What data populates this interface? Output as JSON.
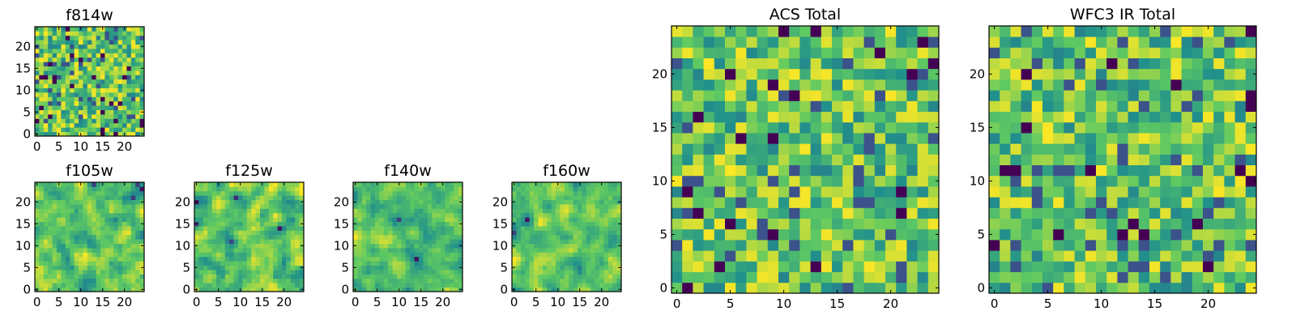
{
  "figure": {
    "description_title": ""
  },
  "chart_data": [
    {
      "type": "heatmap",
      "title": "f814w",
      "xticks": [
        0,
        5,
        10,
        15,
        20
      ],
      "yticks": [
        0,
        5,
        10,
        15,
        20
      ],
      "grid_size": 25,
      "seed": 814,
      "style": "noisy",
      "xlim": [
        -0.5,
        24.5
      ],
      "ylim": [
        -0.5,
        24.5
      ],
      "colormap": "viridis",
      "values": []
    },
    {
      "type": "heatmap",
      "title": "f105w",
      "xticks": [
        0,
        5,
        10,
        15,
        20
      ],
      "yticks": [
        0,
        5,
        10,
        15,
        20
      ],
      "grid_size": 25,
      "seed": 105,
      "style": "smooth",
      "xlim": [
        -0.5,
        24.5
      ],
      "ylim": [
        -0.5,
        24.5
      ],
      "colormap": "viridis",
      "values": []
    },
    {
      "type": "heatmap",
      "title": "f125w",
      "xticks": [
        0,
        5,
        10,
        15,
        20
      ],
      "yticks": [
        0,
        5,
        10,
        15,
        20
      ],
      "grid_size": 25,
      "seed": 125,
      "style": "smooth",
      "xlim": [
        -0.5,
        24.5
      ],
      "ylim": [
        -0.5,
        24.5
      ],
      "colormap": "viridis",
      "values": []
    },
    {
      "type": "heatmap",
      "title": "f140w",
      "xticks": [
        0,
        5,
        10,
        15,
        20
      ],
      "yticks": [
        0,
        5,
        10,
        15,
        20
      ],
      "grid_size": 25,
      "seed": 140,
      "style": "smooth",
      "xlim": [
        -0.5,
        24.5
      ],
      "ylim": [
        -0.5,
        24.5
      ],
      "colormap": "viridis",
      "values": []
    },
    {
      "type": "heatmap",
      "title": "f160w",
      "xticks": [
        0,
        5,
        10,
        15,
        20
      ],
      "yticks": [
        0,
        5,
        10,
        15,
        20
      ],
      "grid_size": 25,
      "seed": 160,
      "style": "smooth",
      "xlim": [
        -0.5,
        24.5
      ],
      "ylim": [
        -0.5,
        24.5
      ],
      "colormap": "viridis",
      "values": []
    },
    {
      "type": "heatmap",
      "title": "ACS Total",
      "xticks": [
        0,
        5,
        10,
        15,
        20
      ],
      "yticks": [
        0,
        5,
        10,
        15,
        20
      ],
      "grid_size": 25,
      "seed": 700,
      "style": "blocky",
      "xlim": [
        -0.5,
        24.5
      ],
      "ylim": [
        -0.5,
        24.5
      ],
      "colormap": "viridis",
      "values": []
    },
    {
      "type": "heatmap",
      "title": "WFC3 IR Total",
      "xticks": [
        0,
        5,
        10,
        15,
        20
      ],
      "yticks": [
        0,
        5,
        10,
        15,
        20
      ],
      "grid_size": 25,
      "seed": 333,
      "style": "blocky",
      "xlim": [
        -0.5,
        24.5
      ],
      "ylim": [
        -0.5,
        24.5
      ],
      "colormap": "viridis",
      "values": []
    }
  ],
  "colors": {
    "viridis": [
      "#440154",
      "#3b528b",
      "#21918c",
      "#5ec962",
      "#fde725"
    ]
  }
}
